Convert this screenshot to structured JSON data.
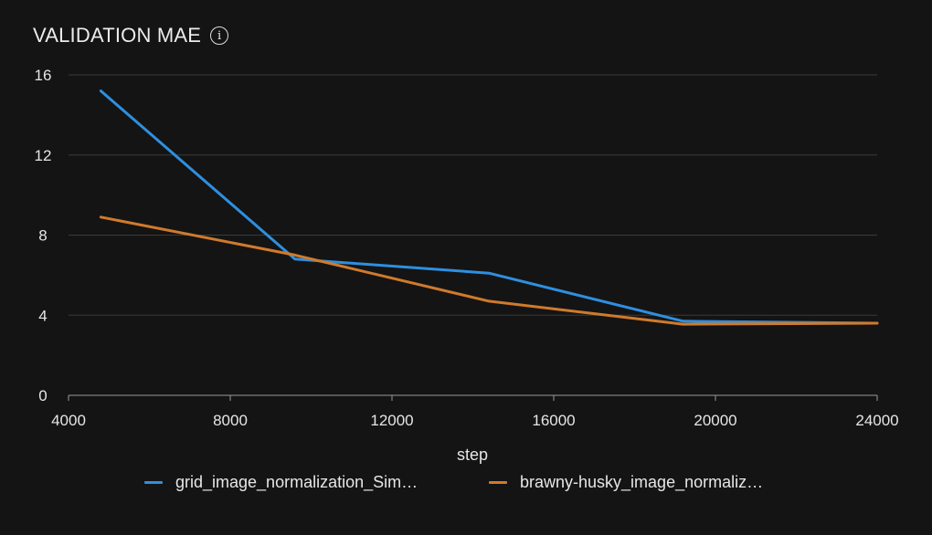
{
  "title": "VALIDATION MAE",
  "info_icon": "info-icon",
  "colors": {
    "background": "#141414",
    "grid": "#3a3a3a",
    "axis": "#9a9a9a",
    "series_blue": "#2e8fe0",
    "series_orange": "#d07a2c"
  },
  "chart_data": {
    "type": "line",
    "title": "VALIDATION MAE",
    "xlabel": "step",
    "ylabel": "",
    "xlim": [
      4000,
      24000
    ],
    "ylim": [
      0,
      16
    ],
    "xticks": [
      4000,
      8000,
      12000,
      16000,
      20000,
      24000
    ],
    "yticks": [
      0,
      4,
      8,
      12,
      16
    ],
    "grid": true,
    "legend_position": "bottom",
    "series": [
      {
        "name": "grid_image_normalization_Sim…",
        "color": "#2e8fe0",
        "x": [
          4800,
          9600,
          14400,
          19200,
          24000
        ],
        "y": [
          15.2,
          6.8,
          6.1,
          3.7,
          3.6
        ]
      },
      {
        "name": "brawny-husky_image_normaliz…",
        "color": "#d07a2c",
        "x": [
          4800,
          9600,
          14400,
          19200,
          24000
        ],
        "y": [
          8.9,
          7.0,
          4.7,
          3.55,
          3.6
        ]
      }
    ]
  }
}
